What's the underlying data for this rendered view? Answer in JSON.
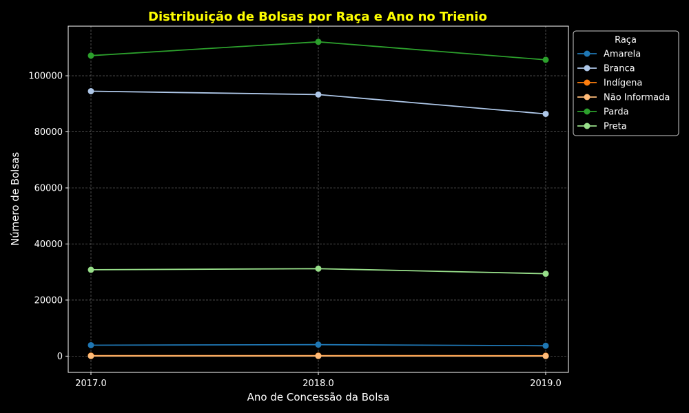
{
  "chart_data": {
    "type": "line",
    "title": "Distribuição de Bolsas por Raça e Ano no Trienio",
    "xlabel": "Ano de Concessão da Bolsa",
    "ylabel": "Número de Bolsas",
    "x": [
      2017,
      2018,
      2019
    ],
    "x_tick_labels": [
      "2017.0",
      "2018.0",
      "2019.0"
    ],
    "xlim": [
      2016.9,
      2019.1
    ],
    "ylim": [
      -5800,
      117700
    ],
    "y_ticks": [
      0,
      20000,
      40000,
      60000,
      80000,
      100000
    ],
    "y_tick_labels": [
      "0",
      "20000",
      "40000",
      "60000",
      "80000",
      "100000"
    ],
    "grid": true,
    "legend": {
      "title": "Raça",
      "placement": "outside-top-right"
    },
    "series": [
      {
        "name": "Amarela",
        "color": "#1f77b4",
        "values": [
          3900,
          4100,
          3700
        ]
      },
      {
        "name": "Branca",
        "color": "#aec7e8",
        "values": [
          94500,
          93300,
          86400
        ]
      },
      {
        "name": "Indígena",
        "color": "#ff7f0e",
        "values": [
          200,
          200,
          150
        ]
      },
      {
        "name": "Não Informada",
        "color": "#ffbb78",
        "values": [
          50,
          50,
          30
        ]
      },
      {
        "name": "Parda",
        "color": "#2ca02c",
        "values": [
          107200,
          112100,
          105700
        ]
      },
      {
        "name": "Preta",
        "color": "#98df8a",
        "values": [
          30800,
          31200,
          29400
        ]
      }
    ]
  }
}
